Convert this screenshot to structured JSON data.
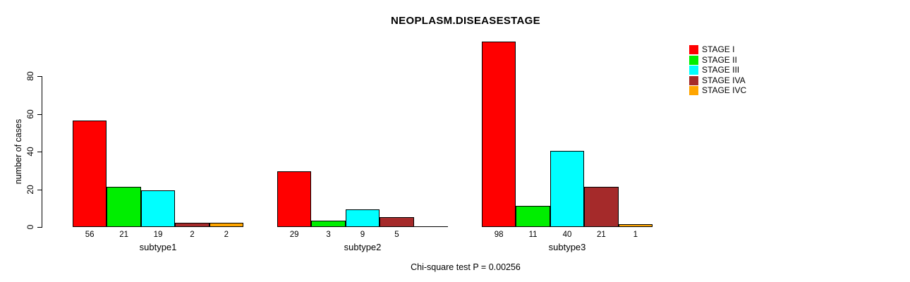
{
  "title": "NEOPLASM.DISEASESTAGE",
  "caption": "Chi-square test P = 0.00256",
  "y_axis": {
    "label": "number of cases",
    "ticks": [
      0,
      20,
      40,
      60,
      80
    ]
  },
  "legend": {
    "entries": [
      {
        "label": "STAGE I",
        "color": "#FF0000"
      },
      {
        "label": "STAGE II",
        "color": "#00EE00"
      },
      {
        "label": "STAGE III",
        "color": "#00FFFF"
      },
      {
        "label": "STAGE IVA",
        "color": "#A52A2A"
      },
      {
        "label": "STAGE IVC",
        "color": "#FFA500"
      }
    ]
  },
  "chart_data": {
    "type": "bar",
    "title": "NEOPLASM.DISEASESTAGE",
    "xlabel": "",
    "ylabel": "number of cases",
    "ylim": [
      0,
      80
    ],
    "yticks": [
      0,
      20,
      40,
      60,
      80
    ],
    "grid": false,
    "legend_position": "topright",
    "bar_value_labels": true,
    "categories": [
      "subtype1",
      "subtype2",
      "subtype3"
    ],
    "series": [
      {
        "name": "STAGE I",
        "color": "#FF0000",
        "values": [
          56,
          29,
          98
        ]
      },
      {
        "name": "STAGE II",
        "color": "#00EE00",
        "values": [
          21,
          3,
          11
        ]
      },
      {
        "name": "STAGE III",
        "color": "#00FFFF",
        "values": [
          19,
          9,
          40
        ]
      },
      {
        "name": "STAGE IVA",
        "color": "#A52A2A",
        "values": [
          2,
          5,
          21
        ]
      },
      {
        "name": "STAGE IVC",
        "color": "#FFA500",
        "values": [
          2,
          0,
          1
        ]
      }
    ],
    "annotation": "Chi-square test P = 0.00256"
  }
}
